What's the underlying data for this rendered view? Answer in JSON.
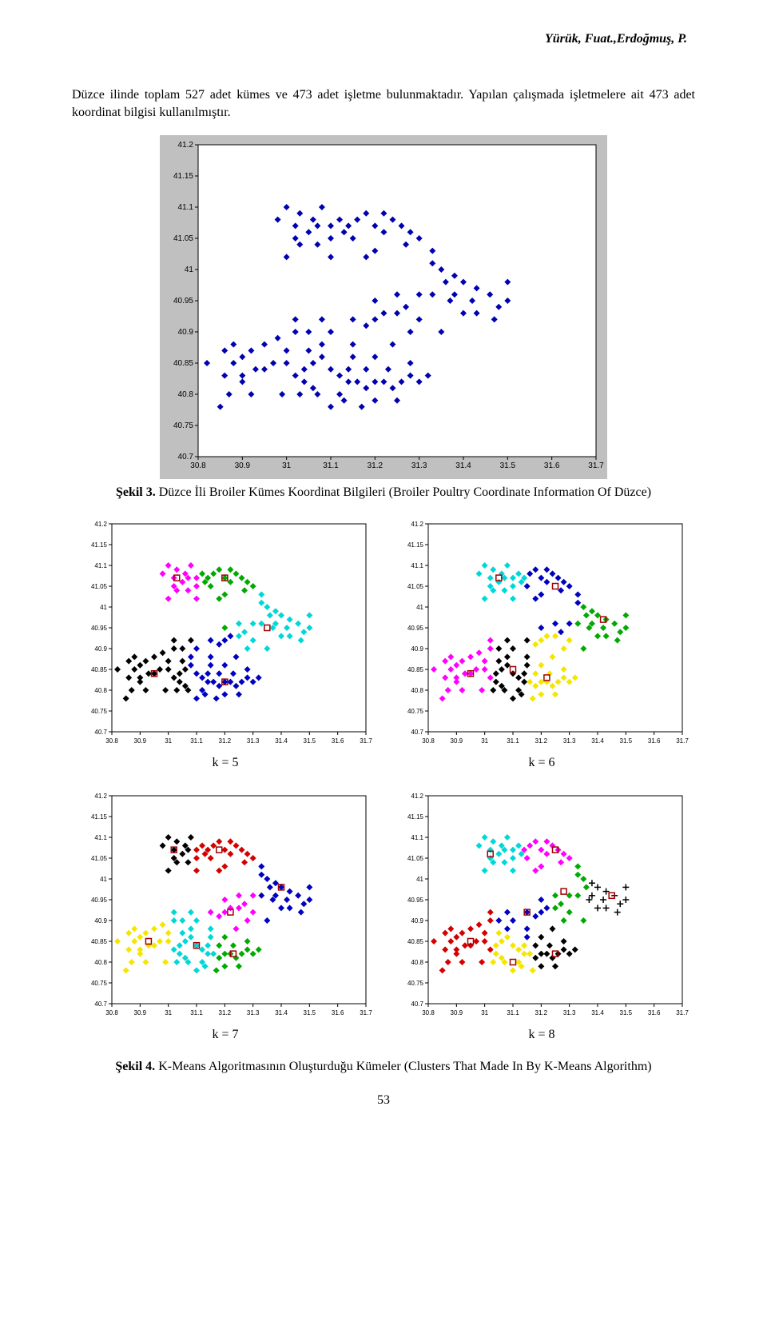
{
  "header": {
    "running": "Yürük, Fuat.,Erdoğmuş, P."
  },
  "paragraph": "Düzce ilinde toplam 527 adet kümes ve 473 adet işletme bulunmaktadır. Yapılan çalışmada işletmelere ait 473 adet koordinat bilgisi kullanılmıştır.",
  "fig3": {
    "label": "Şekil 3.",
    "text": "Düzce İli Broiler Kümes Koordinat Bilgileri (Broiler Poultry Coordinate Information Of Düzce)",
    "plot": {
      "type": "scatter",
      "xlim": [
        30.8,
        31.7
      ],
      "ylim": [
        40.7,
        41.2
      ],
      "xticks": [
        30.8,
        30.9,
        31,
        31.1,
        31.2,
        31.3,
        31.4,
        31.5,
        31.6,
        31.7
      ],
      "yticks": [
        40.7,
        40.75,
        40.8,
        40.85,
        40.9,
        40.95,
        41,
        41.05,
        41.1,
        41.15,
        41.2
      ],
      "tick_fontsize": 10,
      "background_color": "#c0c0c0",
      "plot_bg": "#ffffff",
      "axis_color": "#000000",
      "marker": "diamond",
      "marker_color": "#0000b0",
      "marker_size": 4
    }
  },
  "grid": {
    "type": "scatter",
    "xlim": [
      30.8,
      31.7
    ],
    "ylim": [
      40.7,
      41.2
    ],
    "xticks": [
      30.8,
      30.9,
      31,
      31.1,
      31.2,
      31.3,
      31.4,
      31.5,
      31.6,
      31.7
    ],
    "yticks": [
      40.7,
      40.75,
      40.8,
      40.85,
      40.9,
      40.95,
      41,
      41.05,
      41.1,
      41.15,
      41.2
    ],
    "tick_fontsize": 8,
    "plot_bg": "#ffffff",
    "axis_color": "#000000",
    "marker_size": 4,
    "centroid_marker": "square",
    "centroid_color": "#a00000",
    "centroid_size": 7,
    "panels": {
      "k5": {
        "label": "k = 5",
        "clusters": [
          {
            "name": "magenta",
            "color": "#ff00ff",
            "centroid": [
              31.03,
              41.07
            ]
          },
          {
            "name": "green",
            "color": "#00aa00",
            "centroid": [
              31.2,
              41.07
            ]
          },
          {
            "name": "cyan",
            "color": "#00d7d7",
            "centroid": [
              31.35,
              40.95
            ]
          },
          {
            "name": "black",
            "color": "#000000",
            "centroid": [
              30.95,
              40.84
            ]
          },
          {
            "name": "blue",
            "color": "#0000c0",
            "centroid": [
              31.2,
              40.82
            ]
          }
        ]
      },
      "k6": {
        "label": "k = 6",
        "clusters": [
          {
            "name": "cyan",
            "color": "#00d7d7",
            "centroid": [
              31.05,
              41.07
            ]
          },
          {
            "name": "blue",
            "color": "#0000c0",
            "centroid": [
              31.25,
              41.05
            ]
          },
          {
            "name": "green",
            "color": "#00aa00",
            "centroid": [
              31.42,
              40.97
            ]
          },
          {
            "name": "magenta",
            "color": "#ff00ff",
            "centroid": [
              30.95,
              40.84
            ]
          },
          {
            "name": "black",
            "color": "#000000",
            "centroid": [
              31.1,
              40.85
            ]
          },
          {
            "name": "yellow",
            "color": "#f5e600",
            "centroid": [
              31.22,
              40.83
            ]
          }
        ]
      },
      "k7": {
        "label": "k = 7",
        "clusters": [
          {
            "name": "black",
            "color": "#000000",
            "centroid": [
              31.02,
              41.07
            ]
          },
          {
            "name": "red",
            "color": "#d40000",
            "centroid": [
              31.18,
              41.07
            ]
          },
          {
            "name": "blue",
            "color": "#0000c0",
            "centroid": [
              31.4,
              40.98
            ]
          },
          {
            "name": "magenta",
            "color": "#ff00ff",
            "centroid": [
              31.22,
              40.92
            ]
          },
          {
            "name": "yellow",
            "color": "#f5e600",
            "centroid": [
              30.93,
              40.85
            ]
          },
          {
            "name": "cyan",
            "color": "#00d7d7",
            "centroid": [
              31.1,
              40.84
            ]
          },
          {
            "name": "green",
            "color": "#00aa00",
            "centroid": [
              31.23,
              40.82
            ]
          }
        ]
      },
      "k8": {
        "label": "k = 8",
        "clusters": [
          {
            "name": "cyan",
            "color": "#00d7d7",
            "centroid": [
              31.02,
              41.06
            ]
          },
          {
            "name": "magenta",
            "color": "#ff00ff",
            "centroid": [
              31.25,
              41.07
            ]
          },
          {
            "name": "green",
            "color": "#00aa00",
            "centroid": [
              31.28,
              40.97
            ]
          },
          {
            "name": "plus",
            "color": "#000000",
            "centroid": [
              31.45,
              40.96
            ],
            "marker": "plus"
          },
          {
            "name": "blue",
            "color": "#0000c0",
            "centroid": [
              31.15,
              40.92
            ]
          },
          {
            "name": "red",
            "color": "#d40000",
            "centroid": [
              30.95,
              40.85
            ]
          },
          {
            "name": "yellow",
            "color": "#f5e600",
            "centroid": [
              31.1,
              40.8
            ]
          },
          {
            "name": "black",
            "color": "#000000",
            "centroid": [
              31.25,
              40.82
            ]
          }
        ]
      }
    }
  },
  "fig4": {
    "label": "Şekil 4.",
    "text": "K-Means Algoritmasının Oluşturduğu Kümeler (Clusters That Made In By K-Means Algorithm)"
  },
  "page_number": "53",
  "cloud": [
    [
      31.0,
      41.1
    ],
    [
      31.03,
      41.09
    ],
    [
      31.06,
      41.08
    ],
    [
      31.08,
      41.1
    ],
    [
      31.02,
      41.07
    ],
    [
      30.98,
      41.08
    ],
    [
      31.05,
      41.06
    ],
    [
      31.1,
      41.07
    ],
    [
      31.12,
      41.08
    ],
    [
      31.14,
      41.07
    ],
    [
      31.16,
      41.08
    ],
    [
      31.18,
      41.09
    ],
    [
      31.2,
      41.07
    ],
    [
      31.22,
      41.06
    ],
    [
      31.24,
      41.08
    ],
    [
      31.26,
      41.07
    ],
    [
      31.28,
      41.06
    ],
    [
      31.3,
      41.05
    ],
    [
      31.15,
      41.05
    ],
    [
      31.07,
      41.04
    ],
    [
      31.03,
      41.04
    ],
    [
      31.27,
      41.04
    ],
    [
      31.2,
      41.03
    ],
    [
      31.33,
      41.03
    ],
    [
      31.35,
      41.0
    ],
    [
      31.38,
      40.99
    ],
    [
      31.4,
      40.98
    ],
    [
      31.43,
      40.97
    ],
    [
      31.46,
      40.96
    ],
    [
      31.48,
      40.94
    ],
    [
      31.5,
      40.95
    ],
    [
      31.37,
      40.95
    ],
    [
      31.33,
      40.96
    ],
    [
      31.3,
      40.96
    ],
    [
      31.27,
      40.94
    ],
    [
      31.25,
      40.93
    ],
    [
      31.22,
      40.93
    ],
    [
      31.2,
      40.92
    ],
    [
      31.18,
      40.91
    ],
    [
      31.15,
      40.92
    ],
    [
      31.1,
      40.9
    ],
    [
      31.05,
      40.9
    ],
    [
      31.02,
      40.9
    ],
    [
      30.98,
      40.89
    ],
    [
      30.95,
      40.88
    ],
    [
      30.92,
      40.87
    ],
    [
      30.9,
      40.86
    ],
    [
      30.88,
      40.85
    ],
    [
      30.86,
      40.83
    ],
    [
      30.9,
      40.83
    ],
    [
      30.93,
      40.84
    ],
    [
      30.95,
      40.84
    ],
    [
      30.97,
      40.85
    ],
    [
      31.0,
      40.85
    ],
    [
      31.02,
      40.83
    ],
    [
      31.04,
      40.84
    ],
    [
      31.06,
      40.85
    ],
    [
      31.08,
      40.86
    ],
    [
      31.1,
      40.84
    ],
    [
      31.12,
      40.83
    ],
    [
      31.14,
      40.84
    ],
    [
      31.16,
      40.82
    ],
    [
      31.18,
      40.81
    ],
    [
      31.2,
      40.82
    ],
    [
      31.22,
      40.82
    ],
    [
      31.24,
      40.81
    ],
    [
      31.26,
      40.82
    ],
    [
      31.28,
      40.83
    ],
    [
      31.3,
      40.82
    ],
    [
      31.32,
      40.83
    ],
    [
      31.25,
      40.79
    ],
    [
      31.2,
      40.79
    ],
    [
      31.17,
      40.78
    ],
    [
      31.13,
      40.79
    ],
    [
      31.1,
      40.78
    ],
    [
      31.07,
      40.8
    ],
    [
      31.03,
      40.8
    ],
    [
      30.99,
      40.8
    ],
    [
      30.85,
      40.78
    ],
    [
      30.92,
      40.8
    ],
    [
      31.35,
      40.9
    ],
    [
      31.15,
      40.88
    ],
    [
      31.08,
      40.88
    ],
    [
      31.24,
      40.88
    ],
    [
      31.28,
      40.9
    ],
    [
      31.2,
      40.86
    ],
    [
      31.04,
      40.82
    ],
    [
      30.87,
      40.8
    ],
    [
      30.82,
      40.85
    ],
    [
      31.0,
      41.02
    ],
    [
      31.1,
      41.02
    ],
    [
      31.18,
      41.02
    ],
    [
      31.4,
      40.93
    ],
    [
      31.43,
      40.93
    ],
    [
      31.47,
      40.92
    ],
    [
      31.0,
      40.87
    ],
    [
      31.05,
      40.87
    ],
    [
      31.15,
      40.86
    ],
    [
      31.1,
      41.05
    ],
    [
      31.13,
      41.06
    ],
    [
      31.07,
      41.07
    ],
    [
      31.22,
      41.09
    ],
    [
      31.02,
      41.05
    ],
    [
      31.33,
      41.01
    ],
    [
      31.3,
      40.92
    ],
    [
      31.12,
      40.8
    ],
    [
      31.28,
      40.85
    ],
    [
      31.18,
      40.84
    ],
    [
      31.14,
      40.82
    ],
    [
      31.23,
      40.84
    ],
    [
      31.06,
      40.81
    ],
    [
      30.9,
      40.82
    ],
    [
      31.38,
      40.96
    ],
    [
      31.42,
      40.95
    ],
    [
      31.36,
      40.98
    ],
    [
      31.25,
      40.96
    ],
    [
      31.2,
      40.95
    ],
    [
      31.02,
      40.92
    ],
    [
      31.08,
      40.92
    ],
    [
      30.86,
      40.87
    ],
    [
      30.88,
      40.88
    ],
    [
      31.5,
      40.98
    ]
  ]
}
